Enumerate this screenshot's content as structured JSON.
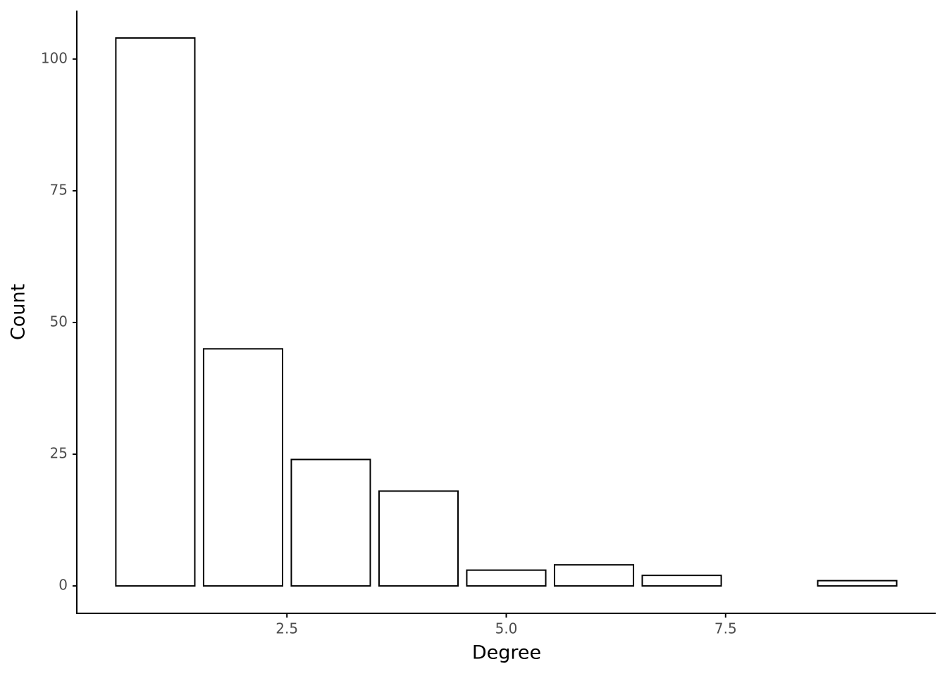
{
  "chart_data": {
    "type": "bar",
    "x": [
      1,
      2,
      3,
      4,
      5,
      6,
      7,
      9
    ],
    "values": [
      104,
      45,
      24,
      18,
      3,
      4,
      2,
      1
    ],
    "x_label": "Degree",
    "y_label": "Count",
    "color": "#ffffff",
    "edge_color": "#000000",
    "xlim": [
      0.105,
      9.895
    ],
    "xticks": [
      2.5,
      {
        "value": 5,
        "label": "5.0"
      },
      7.5
    ],
    "ylim": [
      -5.2,
      109.2
    ],
    "yticks": [
      0,
      25,
      50,
      75,
      100
    ],
    "grid": false
  }
}
